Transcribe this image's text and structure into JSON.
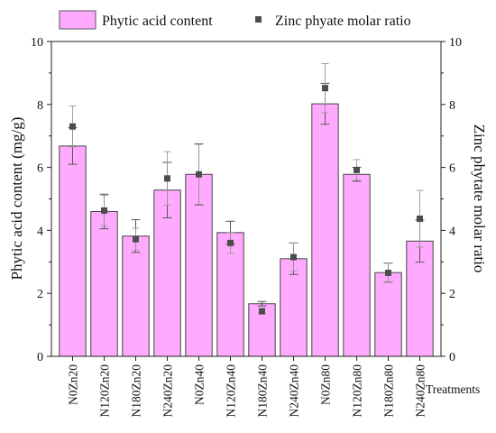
{
  "chart_data": {
    "type": "bar",
    "categories": [
      "N0Zn20",
      "N120Zn20",
      "N180Zn20",
      "N240Zn20",
      "N0Zn40",
      "N120Zn40",
      "N180Zn40",
      "N240Zn40",
      "N0Zn80",
      "N120Zn80",
      "N180Zn80",
      "N240Zn80"
    ],
    "series": [
      {
        "name": "Phytic acid content",
        "kind": "bar",
        "axis": "left",
        "color": "#ffaaff",
        "values": [
          6.68,
          4.6,
          3.82,
          5.28,
          5.78,
          3.93,
          1.67,
          3.1,
          8.02,
          5.78,
          2.66,
          3.66
        ],
        "error": [
          0.58,
          0.55,
          0.52,
          0.88,
          0.97,
          0.36,
          0.07,
          0.5,
          0.65,
          0.22,
          0.3,
          0.67
        ]
      },
      {
        "name": "Zinc phyate molar ratio",
        "kind": "scatter",
        "axis": "right",
        "color": "#4d4d4d",
        "values": [
          7.3,
          4.63,
          3.72,
          5.65,
          5.78,
          3.6,
          1.43,
          3.15,
          8.52,
          5.92,
          2.65,
          4.37
        ],
        "error": [
          0.65,
          0.48,
          0.35,
          0.85,
          0.95,
          0.33,
          0.08,
          0.45,
          0.78,
          0.33,
          0.3,
          0.9
        ]
      }
    ],
    "ylabel": "Phytic acid content (mg/g)",
    "y2label": "Zinc phytate molar ratio",
    "xlabel": "Treatments",
    "ylim": [
      0,
      10
    ],
    "y2lim": [
      0,
      10
    ],
    "yticks": [
      "0",
      "2",
      "4",
      "6",
      "8",
      "10"
    ],
    "y2ticks": [
      "0",
      "2",
      "4",
      "6",
      "8",
      "10"
    ],
    "grid": false,
    "legend_position": "top"
  }
}
